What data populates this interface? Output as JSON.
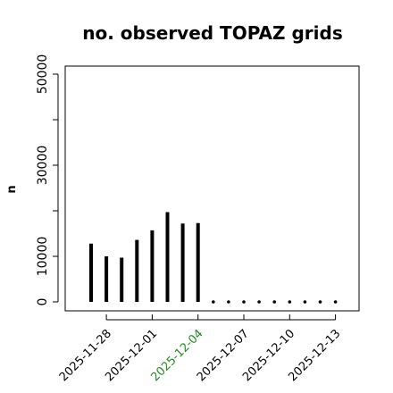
{
  "chart_data": {
    "type": "bar",
    "title": "no. observed TOPAZ grids",
    "xlabel": "",
    "ylabel": "n",
    "categories": [
      "2025-11-27",
      "2025-11-28",
      "2025-11-29",
      "2025-11-30",
      "2025-12-01",
      "2025-12-02",
      "2025-12-03",
      "2025-12-04",
      "2025-12-05",
      "2025-12-06",
      "2025-12-07",
      "2025-12-08",
      "2025-12-09",
      "2025-12-10",
      "2025-12-11",
      "2025-12-12",
      "2025-12-13"
    ],
    "values": [
      12800,
      10000,
      9700,
      13600,
      15700,
      19700,
      17200,
      17300,
      0,
      0,
      0,
      0,
      0,
      0,
      0,
      0,
      0
    ],
    "ylim": [
      0,
      50000
    ],
    "yticks": [
      0,
      10000,
      20000,
      30000,
      40000,
      50000
    ],
    "ytick_labels": [
      "0",
      "10000",
      "",
      "30000",
      "",
      "50000"
    ],
    "xtick_labels": [
      {
        "label": "2025-11-28",
        "color": "#000000"
      },
      {
        "label": "2025-12-01",
        "color": "#000000"
      },
      {
        "label": "2025-12-04",
        "color": "#228b22"
      },
      {
        "label": "2025-12-07",
        "color": "#000000"
      },
      {
        "label": "2025-12-10",
        "color": "#000000"
      },
      {
        "label": "2025-12-13",
        "color": "#000000"
      }
    ],
    "bar_color": "#000000",
    "grid": false
  }
}
